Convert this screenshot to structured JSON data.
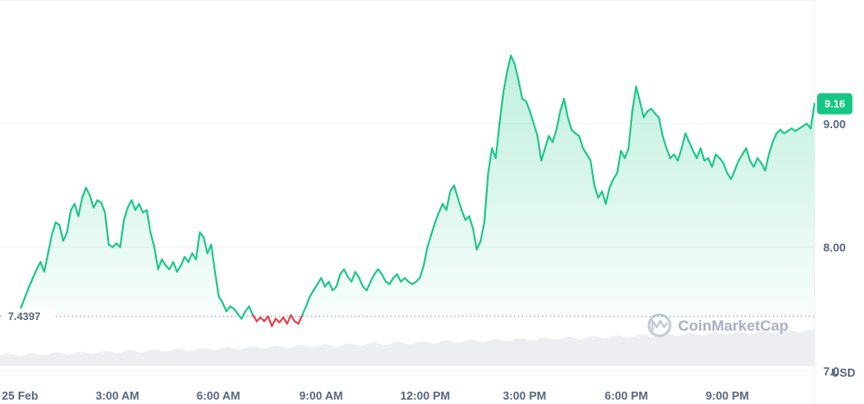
{
  "chart_data": {
    "type": "area",
    "y_ticks": [
      {
        "value": 7.0,
        "label": "7.0"
      },
      {
        "value": 8.0,
        "label": "8.00"
      },
      {
        "value": 9.0,
        "label": "9.00"
      }
    ],
    "x_ticks": [
      "25 Feb",
      "3:00 AM",
      "6:00 AM",
      "9:00 AM",
      "12:00 PM",
      "3:00 PM",
      "6:00 PM",
      "9:00 PM"
    ],
    "ylim": [
      6.73,
      10.0
    ],
    "currency_label": "USD",
    "reference_value": 7.4397,
    "reference_label": "7.4397",
    "current_price_label": "9.16",
    "current_price": 9.16,
    "watermark": "CoinMarketCap",
    "colors": {
      "up": "#16c784",
      "down": "#ea3943",
      "grid": "#eff2f5",
      "volume": "#eceef2"
    },
    "series": [
      {
        "values": [
          7.45,
          7.52,
          7.6,
          7.68,
          7.75,
          7.82,
          7.88,
          7.8,
          7.95,
          8.1,
          8.2,
          8.18,
          8.05,
          8.12,
          8.3,
          8.35,
          8.25,
          8.4,
          8.48,
          8.42,
          8.32,
          8.38,
          8.36,
          8.28,
          8.02,
          8.0,
          8.03,
          8.0,
          8.22,
          8.32,
          8.38,
          8.3,
          8.35,
          8.28,
          8.3,
          8.12,
          8.0,
          7.82,
          7.9,
          7.85,
          7.82,
          7.88,
          7.8,
          7.85,
          7.92,
          7.88,
          7.95,
          7.9,
          8.12,
          8.08,
          7.95,
          8.02,
          7.8,
          7.6,
          7.55,
          7.48,
          7.52,
          7.5,
          7.46,
          7.42,
          7.48,
          7.52,
          7.45,
          7.4,
          7.43,
          7.4,
          7.44,
          7.36,
          7.42,
          7.39,
          7.43,
          7.38,
          7.45,
          7.4,
          7.38,
          7.45,
          7.52,
          7.6,
          7.65,
          7.7,
          7.75,
          7.68,
          7.72,
          7.65,
          7.68,
          7.78,
          7.82,
          7.76,
          7.72,
          7.8,
          7.75,
          7.68,
          7.65,
          7.72,
          7.78,
          7.82,
          7.78,
          7.72,
          7.7,
          7.75,
          7.78,
          7.72,
          7.75,
          7.72,
          7.7,
          7.72,
          7.75,
          7.85,
          8.0,
          8.1,
          8.2,
          8.28,
          8.35,
          8.3,
          8.45,
          8.5,
          8.4,
          8.3,
          8.22,
          8.25,
          8.15,
          7.98,
          8.05,
          8.2,
          8.6,
          8.8,
          8.72,
          9.0,
          9.25,
          9.42,
          9.55,
          9.48,
          9.35,
          9.2,
          9.18,
          9.1,
          9.0,
          8.9,
          8.7,
          8.8,
          8.9,
          8.85,
          8.95,
          9.1,
          9.2,
          9.05,
          8.95,
          8.92,
          8.9,
          8.8,
          8.75,
          8.7,
          8.5,
          8.4,
          8.45,
          8.35,
          8.48,
          8.55,
          8.6,
          8.78,
          8.72,
          8.8,
          9.1,
          9.3,
          9.18,
          9.05,
          9.1,
          9.12,
          9.08,
          9.05,
          8.9,
          8.8,
          8.72,
          8.75,
          8.7,
          8.8,
          8.92,
          8.85,
          8.78,
          8.72,
          8.8,
          8.7,
          8.72,
          8.65,
          8.75,
          8.72,
          8.68,
          8.6,
          8.55,
          8.62,
          8.7,
          8.75,
          8.8,
          8.7,
          8.65,
          8.72,
          8.68,
          8.62,
          8.75,
          8.85,
          8.92,
          8.95,
          8.92,
          8.94,
          8.96,
          8.94,
          8.96,
          8.98,
          9.0,
          8.96,
          9.16
        ]
      }
    ]
  }
}
